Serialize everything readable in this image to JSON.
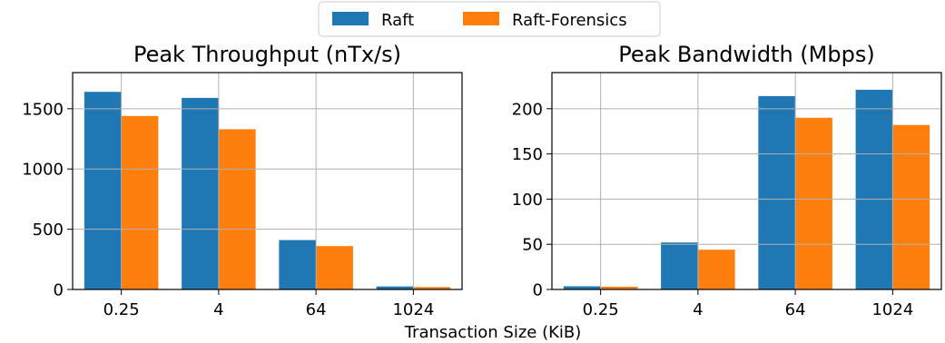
{
  "legend": {
    "entries": [
      "Raft",
      "Raft-Forensics"
    ]
  },
  "colors": {
    "Raft": "#1f77b4",
    "Raft-Forensics": "#ff7f0e"
  },
  "shared_xlabel": "Transaction Size (KiB)",
  "chart_data": [
    {
      "type": "bar",
      "title": "Peak Throughput (nTx/s)",
      "xlabel": "",
      "ylabel": "",
      "categories": [
        "0.25",
        "4",
        "64",
        "1024"
      ],
      "series": [
        {
          "name": "Raft",
          "values": [
            1640,
            1590,
            410,
            25
          ]
        },
        {
          "name": "Raft-Forensics",
          "values": [
            1440,
            1330,
            360,
            20
          ]
        }
      ],
      "ylim": [
        0,
        1800
      ],
      "yticks": [
        0,
        500,
        1000,
        1500
      ],
      "grid": true
    },
    {
      "type": "bar",
      "title": "Peak Bandwidth (Mbps)",
      "xlabel": "",
      "ylabel": "",
      "categories": [
        "0.25",
        "4",
        "64",
        "1024"
      ],
      "series": [
        {
          "name": "Raft",
          "values": [
            3.5,
            52,
            214,
            221
          ]
        },
        {
          "name": "Raft-Forensics",
          "values": [
            3,
            44,
            190,
            182
          ]
        }
      ],
      "ylim": [
        0,
        240
      ],
      "yticks": [
        0,
        50,
        100,
        150,
        200
      ],
      "grid": true
    }
  ]
}
